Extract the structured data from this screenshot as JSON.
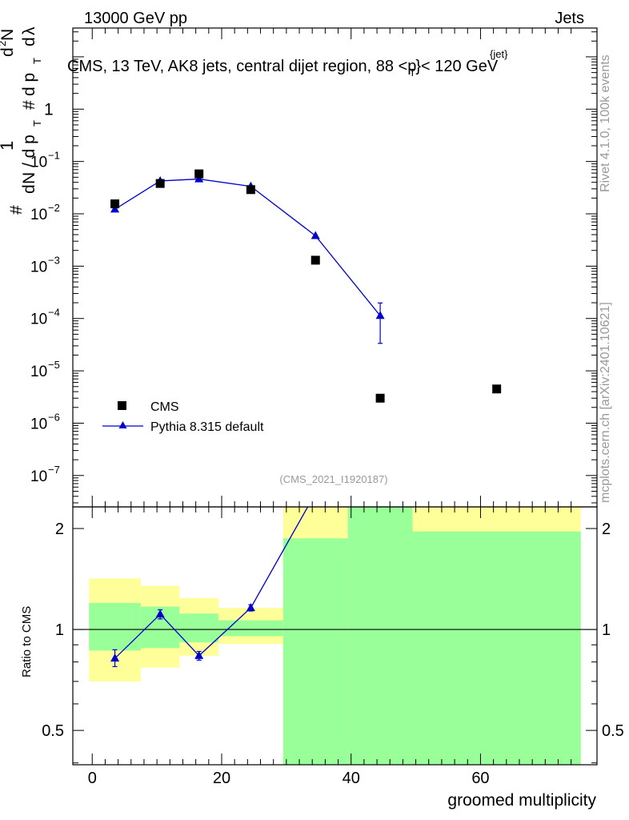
{
  "header": {
    "energy": "13000 GeV pp",
    "category": "Jets"
  },
  "side": {
    "rivet": "Rivet 4.1.0,  100k events",
    "mcplots": "mcplots.cern.ch [arXiv:2401.10621]"
  },
  "chart_data": [
    {
      "type": "scatter",
      "title": "CMS, 13 TeV, AK8 jets, central dijet region, 88 <p",
      "title_sup": "{jet}",
      "title_sub": "T",
      "title_tail": "}< 120 GeV",
      "ylabel_parts": [
        "#",
        "1",
        "d",
        "N / d p",
        "T",
        "#",
        "d",
        "N",
        "d p",
        "T",
        "d",
        "λ",
        "2"
      ],
      "analysis_tag": "(CMS_2021_I1920187)",
      "yscale": "log",
      "ylim_exp": [
        -7.6,
        1.55
      ],
      "xlim": [
        -3,
        78
      ],
      "ytick_labels": [
        {
          "exp": 0,
          "label": "1"
        },
        {
          "exp": -1,
          "label": "10",
          "sup": "−1"
        },
        {
          "exp": -2,
          "label": "10",
          "sup": "−2"
        },
        {
          "exp": -3,
          "label": "10",
          "sup": "−3"
        },
        {
          "exp": -4,
          "label": "10",
          "sup": "−4"
        },
        {
          "exp": -5,
          "label": "10",
          "sup": "−5"
        },
        {
          "exp": -6,
          "label": "10",
          "sup": "−6"
        },
        {
          "exp": -7,
          "label": "10",
          "sup": "−7"
        }
      ],
      "series": [
        {
          "name": "CMS",
          "marker": "square",
          "color": "#000000",
          "points": [
            {
              "x": 3.5,
              "y": 0.0155
            },
            {
              "x": 10.5,
              "y": 0.038
            },
            {
              "x": 16.5,
              "y": 0.058
            },
            {
              "x": 24.5,
              "y": 0.029
            },
            {
              "x": 34.5,
              "y": 0.0013
            },
            {
              "x": 44.5,
              "y": 3e-06
            },
            {
              "x": 62.5,
              "y": 4.5e-06
            }
          ]
        },
        {
          "name": "Pythia 8.315 default",
          "marker": "triangle",
          "color": "#0000cc",
          "points": [
            {
              "x": 3.5,
              "y": 0.0122,
              "ylo": 0.0116,
              "yhi": 0.0128
            },
            {
              "x": 10.5,
              "y": 0.0425,
              "ylo": 0.0418,
              "yhi": 0.0432
            },
            {
              "x": 16.5,
              "y": 0.0462,
              "ylo": 0.0455,
              "yhi": 0.0469
            },
            {
              "x": 24.5,
              "y": 0.0335,
              "ylo": 0.033,
              "yhi": 0.034
            },
            {
              "x": 34.5,
              "y": 0.0038,
              "ylo": 0.0037,
              "yhi": 0.0039
            },
            {
              "x": 44.5,
              "y": 0.000113,
              "ylo": 3.35e-05,
              "yhi": 0.000198
            }
          ]
        }
      ],
      "legend": [
        {
          "label": "CMS",
          "marker": "square"
        },
        {
          "label": "Pythia 8.315 default",
          "marker": "triangle"
        }
      ]
    },
    {
      "type": "scatter",
      "ylabel": "Ratio to CMS",
      "xlabel": "groomed multiplicity",
      "yscale": "log",
      "ylim": [
        0.395,
        2.32
      ],
      "xlim": [
        -3,
        78
      ],
      "xticks": [
        0,
        20,
        40,
        60
      ],
      "yticks": [
        0.5,
        1,
        2
      ],
      "ytick_labels": [
        "0.5",
        "1",
        "2"
      ],
      "reference_line": 1,
      "bands": [
        {
          "x0": -0.5,
          "x1": 7.5,
          "green": [
            0.865,
            1.2
          ],
          "yellow": [
            0.7,
            1.42
          ]
        },
        {
          "x0": 7.5,
          "x1": 13.5,
          "green": [
            0.88,
            1.17
          ],
          "yellow": [
            0.77,
            1.35
          ]
        },
        {
          "x0": 13.5,
          "x1": 19.5,
          "green": [
            0.915,
            1.115
          ],
          "yellow": [
            0.835,
            1.24
          ]
        },
        {
          "x0": 19.5,
          "x1": 29.5,
          "green": [
            0.955,
            1.065
          ],
          "yellow": [
            0.905,
            1.16
          ]
        },
        {
          "x0": 29.5,
          "x1": 39.5,
          "green": [
            0.395,
            1.87
          ],
          "yellow": [
            0.395,
            2.32
          ]
        },
        {
          "x0": 39.5,
          "x1": 49.5,
          "green": [
            0.395,
            2.32
          ],
          "yellow": [
            0.395,
            2.32
          ]
        },
        {
          "x0": 49.5,
          "x1": 75.5,
          "green": [
            0.395,
            1.96
          ],
          "yellow": [
            0.395,
            2.32
          ]
        }
      ],
      "series": [
        {
          "name": "Pythia 8.315 default",
          "color": "#0000cc",
          "points": [
            {
              "x": 3.5,
              "y": 0.82,
              "ylo": 0.775,
              "yhi": 0.87
            },
            {
              "x": 10.5,
              "y": 1.11,
              "ylo": 1.075,
              "yhi": 1.145
            },
            {
              "x": 16.5,
              "y": 0.835,
              "ylo": 0.81,
              "yhi": 0.86
            },
            {
              "x": 24.5,
              "y": 1.16,
              "ylo": 1.135,
              "yhi": 1.185
            }
          ],
          "offscale_to": {
            "x": 33.3,
            "y": 2.32
          }
        }
      ]
    }
  ]
}
